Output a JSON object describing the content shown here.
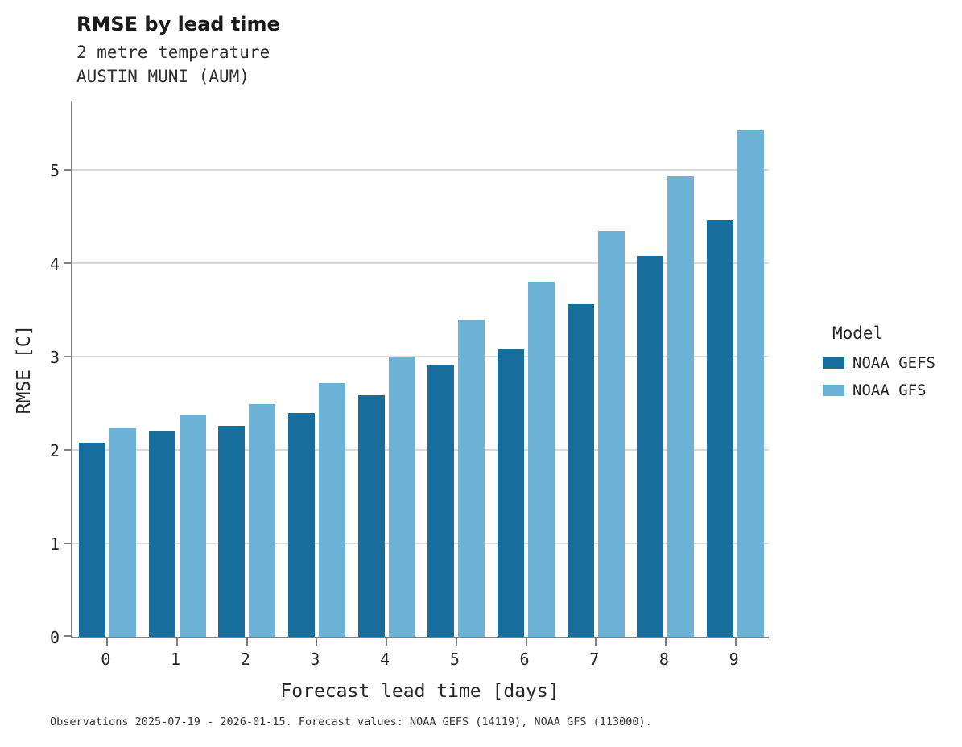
{
  "title": "RMSE by lead time",
  "subtitle_line1": "2 metre temperature",
  "subtitle_line2": "AUSTIN MUNI (AUM)",
  "footer": "Observations 2025-07-19 - 2026-01-15. Forecast values: NOAA GEFS (14119), NOAA GFS (113000).",
  "legend": {
    "title": "Model",
    "entries": [
      {
        "label": "NOAA GEFS",
        "color": "#176d9c"
      },
      {
        "label": "NOAA GFS",
        "color": "#6cb1d6"
      }
    ]
  },
  "chart_data": {
    "type": "bar",
    "title": "RMSE by lead time",
    "subtitle": "2 metre temperature — AUSTIN MUNI (AUM)",
    "categories": [
      "0",
      "1",
      "2",
      "3",
      "4",
      "5",
      "6",
      "7",
      "8",
      "9"
    ],
    "series": [
      {
        "name": "NOAA GEFS",
        "color": "#176d9c",
        "values": [
          2.08,
          2.2,
          2.26,
          2.4,
          2.59,
          2.91,
          3.08,
          3.56,
          4.08,
          4.47
        ]
      },
      {
        "name": "NOAA GFS",
        "color": "#6cb1d6",
        "values": [
          2.23,
          2.37,
          2.49,
          2.72,
          3.0,
          3.4,
          3.8,
          4.35,
          4.93,
          5.42
        ]
      }
    ],
    "xlabel": "Forecast lead time [days]",
    "ylabel": "RMSE [C]",
    "ylim": [
      0,
      5.76
    ],
    "yticks": [
      0,
      1,
      2,
      3,
      4,
      5
    ],
    "grid": true,
    "legend_position": "right"
  }
}
